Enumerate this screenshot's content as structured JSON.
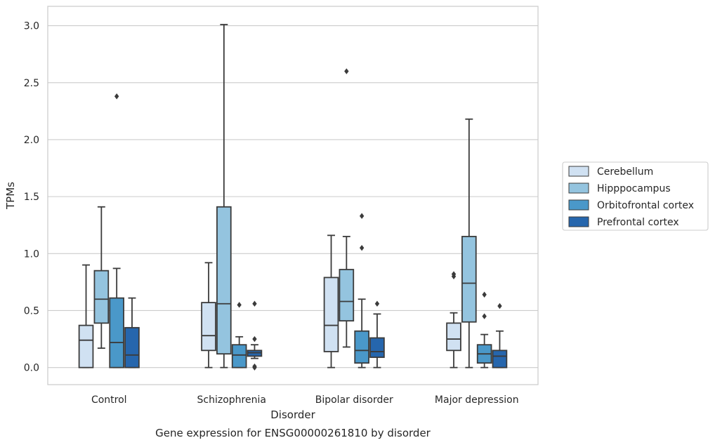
{
  "chart_data": {
    "type": "box",
    "title": "",
    "caption": "Gene expression for ENSG00000261810 by disorder",
    "xlabel": "Disorder",
    "ylabel": "TPMs",
    "ylim": [
      -0.15,
      3.17
    ],
    "yticks": [
      0.0,
      0.5,
      1.0,
      1.5,
      2.0,
      2.5,
      3.0
    ],
    "ytick_labels": [
      "0.0",
      "0.5",
      "1.0",
      "1.5",
      "2.0",
      "2.5",
      "3.0"
    ],
    "grid": "horizontal",
    "legend_position": "right",
    "categories": [
      "Control",
      "Schizophrenia",
      "Bipolar disorder",
      "Major depression"
    ],
    "series": [
      {
        "name": "Cerebellum",
        "color": "#d0e1f2",
        "boxes": [
          {
            "whisker_low": 0.0,
            "q1": 0.0,
            "median": 0.24,
            "q3": 0.37,
            "whisker_high": 0.9,
            "outliers": []
          },
          {
            "whisker_low": 0.0,
            "q1": 0.15,
            "median": 0.28,
            "q3": 0.57,
            "whisker_high": 0.92,
            "outliers": []
          },
          {
            "whisker_low": 0.0,
            "q1": 0.14,
            "median": 0.37,
            "q3": 0.79,
            "whisker_high": 1.16,
            "outliers": []
          },
          {
            "whisker_low": 0.0,
            "q1": 0.15,
            "median": 0.25,
            "q3": 0.39,
            "whisker_high": 0.48,
            "outliers": [
              0.8,
              0.82
            ]
          }
        ]
      },
      {
        "name": "Hipppocampus",
        "color": "#94c4df",
        "boxes": [
          {
            "whisker_low": 0.17,
            "q1": 0.39,
            "median": 0.6,
            "q3": 0.85,
            "whisker_high": 1.41,
            "outliers": []
          },
          {
            "whisker_low": 0.0,
            "q1": 0.12,
            "median": 0.56,
            "q3": 1.41,
            "whisker_high": 3.01,
            "outliers": []
          },
          {
            "whisker_low": 0.18,
            "q1": 0.41,
            "median": 0.58,
            "q3": 0.86,
            "whisker_high": 1.15,
            "outliers": [
              2.6
            ]
          },
          {
            "whisker_low": 0.0,
            "q1": 0.4,
            "median": 0.74,
            "q3": 1.15,
            "whisker_high": 2.18,
            "outliers": []
          }
        ]
      },
      {
        "name": "Orbitofrontal cortex",
        "color": "#4a98c9",
        "boxes": [
          {
            "whisker_low": 0.0,
            "q1": 0.0,
            "median": 0.22,
            "q3": 0.61,
            "whisker_high": 0.87,
            "outliers": [
              2.38
            ]
          },
          {
            "whisker_low": 0.0,
            "q1": 0.0,
            "median": 0.11,
            "q3": 0.2,
            "whisker_high": 0.27,
            "outliers": [
              0.55
            ]
          },
          {
            "whisker_low": 0.0,
            "q1": 0.04,
            "median": 0.15,
            "q3": 0.32,
            "whisker_high": 0.6,
            "outliers": [
              1.05,
              1.33
            ]
          },
          {
            "whisker_low": 0.0,
            "q1": 0.04,
            "median": 0.12,
            "q3": 0.2,
            "whisker_high": 0.29,
            "outliers": [
              0.45,
              0.64
            ]
          }
        ]
      },
      {
        "name": "Prefrontal cortex",
        "color": "#2666ad",
        "boxes": [
          {
            "whisker_low": 0.0,
            "q1": 0.0,
            "median": 0.11,
            "q3": 0.35,
            "whisker_high": 0.61,
            "outliers": []
          },
          {
            "whisker_low": 0.08,
            "q1": 0.1,
            "median": 0.13,
            "q3": 0.15,
            "whisker_high": 0.2,
            "outliers": [
              0.0,
              0.01,
              0.25,
              0.56
            ]
          },
          {
            "whisker_low": 0.0,
            "q1": 0.09,
            "median": 0.14,
            "q3": 0.26,
            "whisker_high": 0.47,
            "outliers": [
              0.56
            ]
          },
          {
            "whisker_low": 0.0,
            "q1": 0.0,
            "median": 0.1,
            "q3": 0.15,
            "whisker_high": 0.32,
            "outliers": [
              0.54
            ]
          }
        ]
      }
    ]
  }
}
